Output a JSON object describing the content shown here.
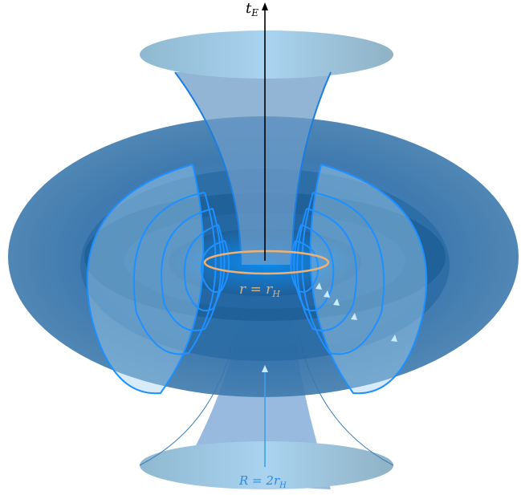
{
  "labels": {
    "time_axis": {
      "base": "t",
      "sub": "E"
    },
    "horizon": {
      "left": "r = r",
      "sub": "H"
    },
    "radius": {
      "left": "R = 2r",
      "sub": "H"
    }
  }
}
